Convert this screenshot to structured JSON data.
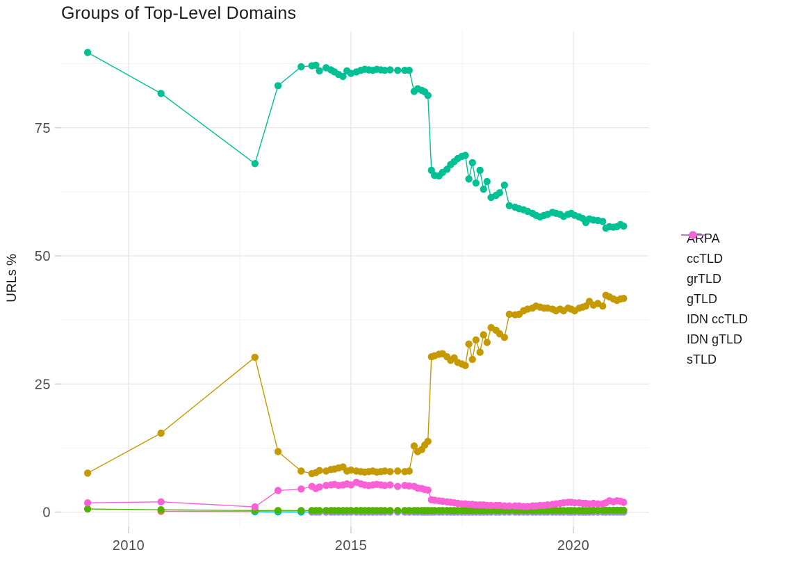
{
  "chart": {
    "title": "Groups of Top-Level Domains",
    "ylabel": "URLs %"
  },
  "chart_data": {
    "type": "line",
    "title": "Groups of Top-Level Domains",
    "xlabel": "",
    "ylabel": "URLs %",
    "grid": "on",
    "legend_position": "right",
    "marker": "point",
    "xlim": [
      2008.5,
      2021.9
    ],
    "ylim": [
      -2.5,
      93.9
    ],
    "x_ticks": [
      2010,
      2015,
      2020
    ],
    "x_tick_labels": [
      "2010",
      "2015",
      "2020"
    ],
    "x_minor_ticks": [
      2012.5,
      2017.5
    ],
    "y_ticks": [
      0,
      25,
      50,
      75
    ],
    "y_tick_labels": [
      "0",
      "25",
      "50",
      "75"
    ],
    "y_minor_ticks": [
      12.5,
      37.5,
      62.5,
      87.5
    ],
    "x": [
      2009.08,
      2010.73,
      2012.84,
      2013.36,
      2013.88,
      2014.12,
      2014.21,
      2014.29,
      2014.44,
      2014.55,
      2014.63,
      2014.72,
      2014.82,
      2014.91,
      2015.0,
      2015.12,
      2015.22,
      2015.31,
      2015.4,
      2015.49,
      2015.58,
      2015.67,
      2015.76,
      2015.88,
      2016.05,
      2016.21,
      2016.31,
      2016.42,
      2016.5,
      2016.59,
      2016.66,
      2016.73,
      2016.81,
      2016.88,
      2016.98,
      2017.06,
      2017.16,
      2017.24,
      2017.32,
      2017.4,
      2017.49,
      2017.57,
      2017.65,
      2017.73,
      2017.81,
      2017.9,
      2017.98,
      2018.06,
      2018.15,
      2018.26,
      2018.34,
      2018.45,
      2018.56,
      2018.69,
      2018.78,
      2018.88,
      2018.97,
      2019.08,
      2019.16,
      2019.25,
      2019.34,
      2019.42,
      2019.53,
      2019.61,
      2019.7,
      2019.78,
      2019.88,
      2019.95,
      2020.03,
      2020.13,
      2020.21,
      2020.28,
      2020.36,
      2020.45,
      2020.55,
      2020.66,
      2020.73,
      2020.81,
      2020.9,
      2020.98,
      2021.06,
      2021.13
    ],
    "series": [
      {
        "name": "ARPA",
        "color": "#F8766D",
        "values": [
          null,
          0.15,
          0.1,
          0.06,
          0.05,
          0.03,
          0.03,
          0.03,
          0.03,
          0.03,
          0.03,
          0.03,
          0.03,
          0.03,
          0.03,
          0.03,
          0.03,
          0.03,
          0.03,
          0.03,
          0.03,
          0.03,
          0.03,
          0.03,
          0.03,
          0.03,
          0.03,
          0.03,
          0.03,
          0.03,
          0.03,
          0.03,
          0.03,
          0.03,
          0.03,
          0.03,
          0.03,
          0.03,
          0.03,
          0.03,
          0.03,
          0.03,
          0.03,
          0.03,
          0.03,
          0.03,
          0.03,
          0.03,
          0.03,
          0.03,
          0.03,
          0.03,
          0.03,
          0.03,
          0.03,
          0.03,
          0.03,
          0.03,
          0.03,
          0.03,
          0.03,
          0.03,
          0.03,
          0.03,
          0.03,
          0.03,
          0.03,
          0.03,
          0.03,
          0.03,
          0.03,
          0.03,
          0.03,
          0.03,
          0.03,
          0.03,
          0.03,
          0.03,
          0.03,
          0.03,
          0.03,
          0.03
        ]
      },
      {
        "name": "ccTLD",
        "color": "#C49A00",
        "values": [
          7.6,
          15.4,
          30.2,
          11.8,
          8.0,
          7.5,
          7.7,
          8.1,
          8.0,
          8.3,
          8.4,
          8.6,
          8.8,
          8.0,
          8.2,
          8.0,
          7.9,
          7.8,
          7.9,
          8.0,
          7.8,
          7.9,
          8.0,
          7.9,
          8.0,
          7.9,
          8.0,
          12.9,
          11.8,
          12.2,
          13.1,
          13.8,
          30.3,
          30.5,
          30.8,
          30.9,
          30.3,
          29.6,
          30.1,
          29.2,
          28.9,
          28.6,
          32.8,
          29.8,
          33.6,
          31.2,
          34.6,
          33.1,
          36.0,
          35.5,
          34.8,
          34.1,
          38.6,
          38.5,
          38.6,
          39.3,
          39.6,
          39.8,
          40.2,
          40.0,
          39.8,
          39.8,
          39.6,
          39.3,
          39.6,
          39.3,
          39.8,
          39.6,
          39.3,
          39.8,
          40.0,
          40.2,
          41.1,
          40.4,
          40.7,
          40.2,
          42.3,
          42.0,
          41.6,
          41.3,
          41.6,
          41.7
        ]
      },
      {
        "name": "grTLD",
        "color": "#53B400",
        "values": [
          0.6,
          0.45,
          0.3,
          0.3,
          0.3,
          0.3,
          0.3,
          0.3,
          0.3,
          0.3,
          0.3,
          0.3,
          0.3,
          0.3,
          0.3,
          0.3,
          0.3,
          0.3,
          0.3,
          0.3,
          0.3,
          0.3,
          0.3,
          0.3,
          0.3,
          0.3,
          0.3,
          0.3,
          0.3,
          0.3,
          0.3,
          0.3,
          0.3,
          0.3,
          0.3,
          0.3,
          0.3,
          0.3,
          0.3,
          0.3,
          0.3,
          0.3,
          0.3,
          0.3,
          0.3,
          0.3,
          0.3,
          0.3,
          0.3,
          0.3,
          0.3,
          0.3,
          0.3,
          0.3,
          0.3,
          0.3,
          0.3,
          0.3,
          0.3,
          0.3,
          0.3,
          0.3,
          0.3,
          0.3,
          0.3,
          0.3,
          0.3,
          0.3,
          0.3,
          0.3,
          0.3,
          0.3,
          0.3,
          0.35,
          0.35,
          0.35,
          0.35,
          0.35,
          0.35,
          0.35,
          0.35,
          0.35
        ]
      },
      {
        "name": "gTLD",
        "color": "#00C094",
        "values": [
          89.7,
          81.7,
          68.0,
          83.2,
          86.9,
          87.1,
          87.2,
          86.1,
          86.7,
          86.3,
          85.9,
          85.4,
          85.0,
          86.1,
          85.6,
          85.9,
          86.2,
          86.4,
          86.3,
          86.2,
          86.4,
          86.3,
          86.2,
          86.3,
          86.2,
          86.2,
          86.2,
          82.1,
          82.6,
          82.3,
          82.0,
          81.3,
          66.7,
          65.7,
          65.6,
          66.3,
          66.9,
          67.8,
          68.4,
          69.0,
          69.4,
          69.6,
          65.0,
          68.2,
          64.2,
          66.7,
          63.0,
          64.5,
          61.4,
          61.8,
          62.3,
          63.8,
          59.8,
          59.5,
          59.2,
          59.0,
          58.7,
          58.3,
          57.9,
          57.6,
          57.9,
          58.1,
          58.5,
          58.3,
          58.1,
          57.7,
          58.1,
          58.3,
          57.9,
          57.6,
          57.3,
          56.5,
          57.2,
          57.0,
          56.9,
          56.7,
          55.4,
          55.7,
          55.6,
          55.7,
          56.1,
          55.8
        ]
      },
      {
        "name": "IDN ccTLD",
        "color": "#00B6EB",
        "values": [
          null,
          null,
          0.05,
          0.03,
          0.02,
          0.02,
          0.02,
          0.02,
          0.02,
          0.02,
          0.02,
          0.02,
          0.02,
          0.02,
          0.02,
          0.02,
          0.02,
          0.02,
          0.02,
          0.02,
          0.02,
          0.02,
          0.02,
          0.02,
          0.02,
          0.02,
          0.02,
          0.02,
          0.02,
          0.02,
          0.02,
          0.02,
          0.02,
          0.02,
          0.02,
          0.02,
          0.02,
          0.02,
          0.02,
          0.02,
          0.02,
          0.02,
          0.02,
          0.02,
          0.02,
          0.02,
          0.02,
          0.02,
          0.02,
          0.02,
          0.02,
          0.02,
          0.02,
          0.02,
          0.02,
          0.02,
          0.02,
          0.02,
          0.02,
          0.02,
          0.02,
          0.02,
          0.02,
          0.02,
          0.02,
          0.02,
          0.02,
          0.02,
          0.02,
          0.02,
          0.02,
          0.02,
          0.02,
          0.02,
          0.02,
          0.02,
          0.02,
          0.02,
          0.02,
          0.02,
          0.02,
          0.02
        ]
      },
      {
        "name": "IDN gTLD",
        "color": "#A58AFF",
        "values": [
          null,
          null,
          null,
          null,
          null,
          0.01,
          0.01,
          0.01,
          0.01,
          0.01,
          0.01,
          0.01,
          0.01,
          0.01,
          0.01,
          0.01,
          0.01,
          0.01,
          0.01,
          0.01,
          0.01,
          0.01,
          0.01,
          0.01,
          0.01,
          0.01,
          0.01,
          0.01,
          0.01,
          0.01,
          0.01,
          0.01,
          0.01,
          0.01,
          0.01,
          0.01,
          0.01,
          0.01,
          0.01,
          0.01,
          0.01,
          0.01,
          0.01,
          0.01,
          0.01,
          0.01,
          0.01,
          0.01,
          0.01,
          0.01,
          0.01,
          0.01,
          0.01,
          0.01,
          0.01,
          0.01,
          0.01,
          0.01,
          0.01,
          0.01,
          0.01,
          0.01,
          0.01,
          0.01,
          0.01,
          0.01,
          0.01,
          0.01,
          0.01,
          0.01,
          0.01,
          0.01,
          0.01,
          0.01,
          0.01,
          0.01,
          0.01,
          0.01,
          0.01,
          0.01,
          0.01,
          0.01
        ]
      },
      {
        "name": "sTLD",
        "color": "#FB61D7",
        "values": [
          1.8,
          2.0,
          1.0,
          4.2,
          4.5,
          5.0,
          4.6,
          4.9,
          5.2,
          5.3,
          5.4,
          5.2,
          5.3,
          5.5,
          5.3,
          5.8,
          5.5,
          5.3,
          5.2,
          5.3,
          5.4,
          5.3,
          5.2,
          5.3,
          5.0,
          5.2,
          5.1,
          5.0,
          4.7,
          4.6,
          4.4,
          4.3,
          2.4,
          2.3,
          2.2,
          2.1,
          2.0,
          1.9,
          1.8,
          1.7,
          1.6,
          1.6,
          1.5,
          1.5,
          1.4,
          1.4,
          1.4,
          1.3,
          1.3,
          1.3,
          1.3,
          1.2,
          1.2,
          1.2,
          1.2,
          1.1,
          1.1,
          1.2,
          1.2,
          1.3,
          1.3,
          1.4,
          1.5,
          1.6,
          1.7,
          1.8,
          1.9,
          1.9,
          1.8,
          1.8,
          1.7,
          1.7,
          1.6,
          1.7,
          1.6,
          1.6,
          1.8,
          2.2,
          2.0,
          2.2,
          2.1,
          1.9
        ]
      }
    ]
  }
}
